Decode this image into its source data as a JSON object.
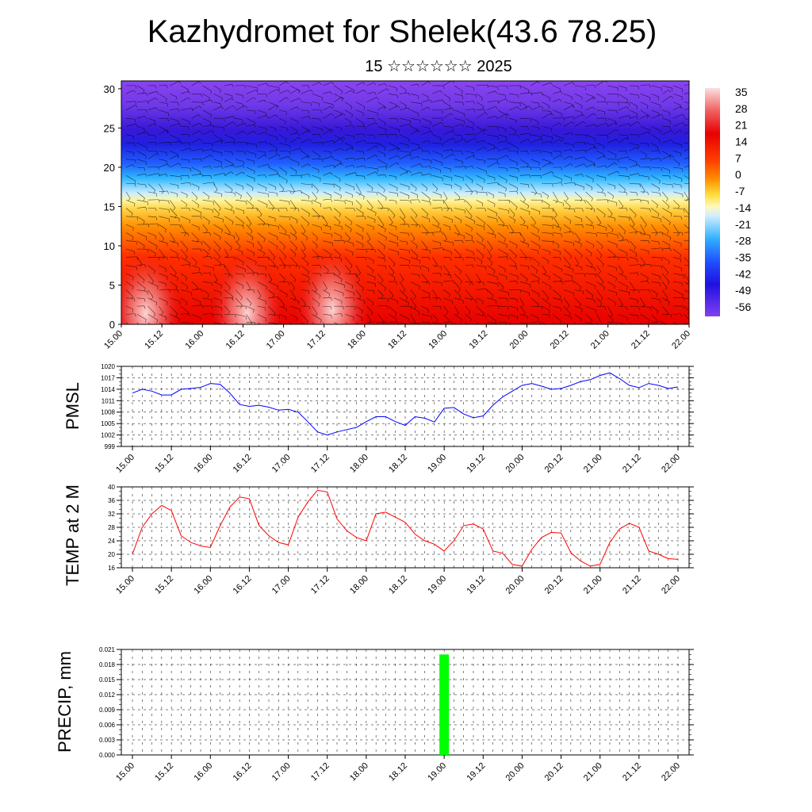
{
  "title": "Kazhydromet for Shelek(43.6 78.25)",
  "subtitle": "15 ☆☆☆☆☆☆ 2025",
  "time_labels": [
    "15.00",
    "15.12",
    "16.00",
    "16.12",
    "17.00",
    "17.12",
    "18.00",
    "18.12",
    "19.00",
    "19.12",
    "20.00",
    "20.12",
    "21.00",
    "21.12",
    "22.00"
  ],
  "cross_section": {
    "y_ticks": [
      0,
      5,
      10,
      15,
      20,
      25,
      30
    ],
    "y_range": [
      0,
      31
    ],
    "colorbar_labels": [
      "35",
      "28",
      "21",
      "14",
      "7",
      "0",
      "-7",
      "-14",
      "-21",
      "-28",
      "-35",
      "-42",
      "-49",
      "-56"
    ],
    "warm_spots": [
      {
        "time": 15.3,
        "level": 3
      },
      {
        "time": 16.55,
        "level": 3
      },
      {
        "time": 17.6,
        "level": 3.5
      }
    ]
  },
  "colors": {
    "pmsl_line": "#0000ff",
    "temp_line": "#ff0000",
    "precip_bar": "#00ff00"
  },
  "chart_data": [
    {
      "type": "line",
      "ylabel": "PMSL",
      "ylim": [
        999,
        1020
      ],
      "y_ticks": [
        999,
        1002,
        1005,
        1008,
        1011,
        1014,
        1017,
        1020
      ],
      "x_start": 15.0,
      "x_step_days": 0.125,
      "values": [
        1013,
        1014,
        1013.5,
        1012.5,
        1012.5,
        1014,
        1014.2,
        1014.5,
        1015.5,
        1015.3,
        1013,
        1010,
        1009.5,
        1009.8,
        1009.3,
        1008.5,
        1008.7,
        1008,
        1005.5,
        1002.8,
        1002,
        1002.8,
        1003.4,
        1004,
        1005.5,
        1006.8,
        1006.8,
        1005.5,
        1004.5,
        1006.8,
        1006.4,
        1005.4,
        1009,
        1009.2,
        1007.5,
        1006.5,
        1007,
        1009.8,
        1012,
        1013.5,
        1015,
        1015.5,
        1014.8,
        1014,
        1014.2,
        1015,
        1016,
        1016.5,
        1017.6,
        1018.3,
        1016.8,
        1015,
        1014.4,
        1015.5,
        1015,
        1014.2,
        1014.6
      ]
    },
    {
      "type": "line",
      "ylabel": "TEMP at 2 M",
      "ylim": [
        16,
        40
      ],
      "y_ticks": [
        16,
        20,
        24,
        28,
        32,
        36,
        40
      ],
      "x_start": 15.0,
      "x_step_days": 0.125,
      "values": [
        20,
        28,
        32,
        34.5,
        33,
        25.5,
        23.5,
        22.5,
        22,
        28.5,
        34,
        37,
        36.5,
        28.5,
        25.5,
        23.5,
        22.8,
        31,
        35.5,
        39,
        38.5,
        30.5,
        27,
        25,
        24,
        32,
        32.5,
        31,
        29.5,
        26,
        24,
        23,
        21,
        24,
        28.5,
        29,
        27.5,
        21,
        20.3,
        17,
        16.5,
        21.5,
        25,
        26.5,
        26.3,
        20.5,
        18,
        16.5,
        17,
        23.5,
        27.5,
        29.2,
        28,
        21,
        20,
        18.7,
        18.5
      ]
    },
    {
      "type": "bar",
      "ylabel": "PRECIP, mm",
      "ylim": [
        0,
        0.021
      ],
      "y_ticks": [
        "0.000",
        "0.003",
        "0.006",
        "0.009",
        "0.012",
        "0.015",
        "0.018",
        "0.021"
      ],
      "bars": [
        {
          "x": "19.00",
          "value": 0.02
        }
      ]
    }
  ]
}
